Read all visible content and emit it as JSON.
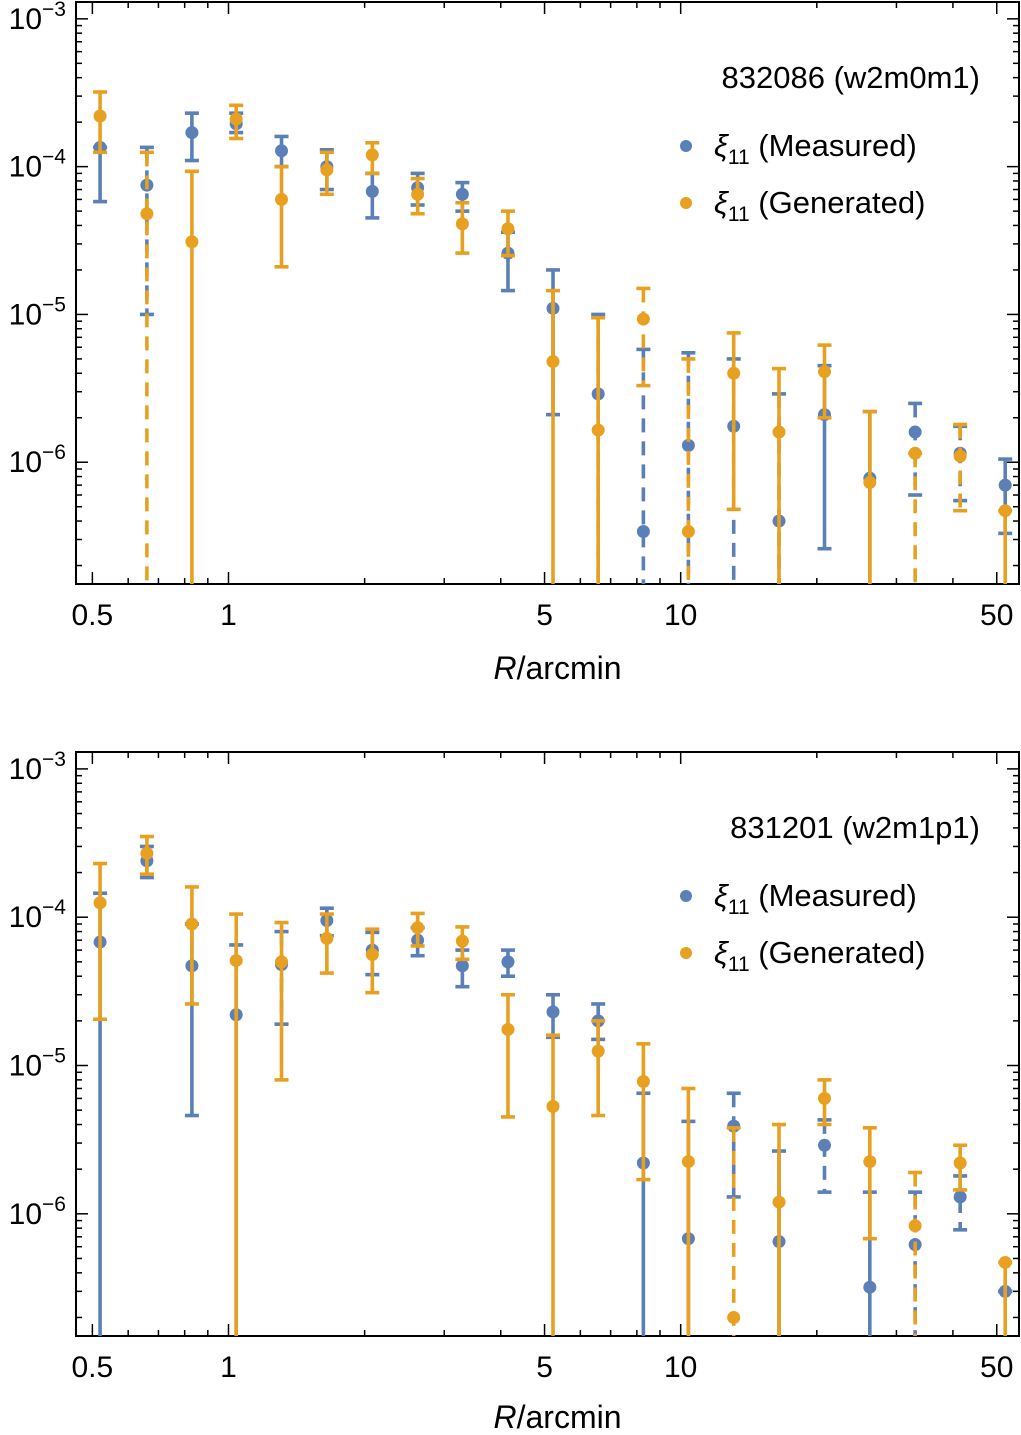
{
  "colors": {
    "measured": "#5b80b8",
    "generated": "#e7a020",
    "frame": "#000000",
    "background": "#ffffff"
  },
  "chart_data": [
    {
      "type": "scatter",
      "title": "832086 (w2m0m1)",
      "xlabel_italic": "R",
      "xlabel_rest": "/arcmin",
      "ylabel": "",
      "xscale": "log",
      "yscale": "log",
      "xlim": [
        0.46,
        56
      ],
      "ylim": [
        1.5e-07,
        0.0013
      ],
      "xticks": [
        {
          "value": 0.5,
          "label": "0.5"
        },
        {
          "value": 1,
          "label": "1"
        },
        {
          "value": 5,
          "label": "5"
        },
        {
          "value": 10,
          "label": "10"
        },
        {
          "value": 50,
          "label": "50"
        }
      ],
      "yticks": [
        {
          "value": 1e-06,
          "label_base": "10",
          "label_exp": "−6"
        },
        {
          "value": 1e-05,
          "label_base": "10",
          "label_exp": "−5"
        },
        {
          "value": 0.0001,
          "label_base": "10",
          "label_exp": "−4"
        },
        {
          "value": 0.001,
          "label_base": "10",
          "label_exp": "−3"
        }
      ],
      "legend_position": "top-right",
      "series": [
        {
          "key": "measured",
          "name_symbol": "ξ",
          "name_sub": "11",
          "name_rest": " (Measured)",
          "points": [
            {
              "x": 0.52,
              "y": 0.000135,
              "lo": 5.8e-05,
              "hi": 0.000135,
              "dashed": false
            },
            {
              "x": 0.66,
              "y": 7.5e-05,
              "lo": 1e-05,
              "hi": 0.000135,
              "dashed": true
            },
            {
              "x": 0.83,
              "y": 0.00017,
              "lo": 0.00011,
              "hi": 0.00023,
              "dashed": false
            },
            {
              "x": 1.04,
              "y": 0.000195,
              "lo": 0.00017,
              "hi": 0.00023,
              "dashed": false
            },
            {
              "x": 1.31,
              "y": 0.000128,
              "lo": 0.0001,
              "hi": 0.00016,
              "dashed": false
            },
            {
              "x": 1.65,
              "y": 0.0001,
              "lo": 7e-05,
              "hi": 0.00013,
              "dashed": true
            },
            {
              "x": 2.08,
              "y": 6.8e-05,
              "lo": 4.5e-05,
              "hi": 9e-05,
              "dashed": false
            },
            {
              "x": 2.62,
              "y": 7.2e-05,
              "lo": 5.5e-05,
              "hi": 9e-05,
              "dashed": true
            },
            {
              "x": 3.29,
              "y": 6.5e-05,
              "lo": 5e-05,
              "hi": 7.8e-05,
              "dashed": false
            },
            {
              "x": 4.15,
              "y": 2.6e-05,
              "lo": 1.45e-05,
              "hi": 3.6e-05,
              "dashed": false
            },
            {
              "x": 5.22,
              "y": 1.1e-05,
              "lo": 2.1e-06,
              "hi": 2e-05,
              "dashed": false
            },
            {
              "x": 6.57,
              "y": 2.9e-06,
              "lo": 1e-07,
              "hi": 1e-05,
              "dashed": true
            },
            {
              "x": 8.27,
              "y": 3.4e-07,
              "lo": 1e-07,
              "hi": 5.8e-06,
              "dashed": true
            },
            {
              "x": 10.4,
              "y": 1.3e-06,
              "lo": 1e-07,
              "hi": 5.5e-06,
              "dashed": true
            },
            {
              "x": 13.1,
              "y": 1.75e-06,
              "lo": 1e-07,
              "hi": 5e-06,
              "dashed": true
            },
            {
              "x": 16.5,
              "y": 4e-07,
              "lo": 1e-07,
              "hi": 2.9e-06,
              "dashed": true
            },
            {
              "x": 20.8,
              "y": 2.1e-06,
              "lo": 2.6e-07,
              "hi": 4.5e-06,
              "dashed": false
            },
            {
              "x": 26.2,
              "y": 7.8e-07,
              "lo": 1e-07,
              "hi": 2.2e-06,
              "dashed": false
            },
            {
              "x": 33.0,
              "y": 1.6e-06,
              "lo": 6e-07,
              "hi": 2.5e-06,
              "dashed": true
            },
            {
              "x": 41.5,
              "y": 1.15e-06,
              "lo": 5.5e-07,
              "hi": 1.75e-06,
              "dashed": true
            },
            {
              "x": 52.2,
              "y": 7e-07,
              "lo": 3.3e-07,
              "hi": 1.05e-06,
              "dashed": false
            }
          ]
        },
        {
          "key": "generated",
          "name_symbol": "ξ",
          "name_sub": "11",
          "name_rest": " (Generated)",
          "points": [
            {
              "x": 0.52,
              "y": 0.00022,
              "lo": 0.000125,
              "hi": 0.00032,
              "dashed": false
            },
            {
              "x": 0.66,
              "y": 4.8e-05,
              "lo": 1e-07,
              "hi": 0.000125,
              "dashed": true
            },
            {
              "x": 0.83,
              "y": 3.1e-05,
              "lo": 1e-07,
              "hi": 9.3e-05,
              "dashed": false
            },
            {
              "x": 1.04,
              "y": 0.00021,
              "lo": 0.000155,
              "hi": 0.00026,
              "dashed": false
            },
            {
              "x": 1.31,
              "y": 6e-05,
              "lo": 2.1e-05,
              "hi": 0.0001,
              "dashed": false
            },
            {
              "x": 1.65,
              "y": 9.5e-05,
              "lo": 6.5e-05,
              "hi": 0.000125,
              "dashed": false
            },
            {
              "x": 2.08,
              "y": 0.00012,
              "lo": 9e-05,
              "hi": 0.000145,
              "dashed": false
            },
            {
              "x": 2.62,
              "y": 6.5e-05,
              "lo": 4.8e-05,
              "hi": 8.3e-05,
              "dashed": false
            },
            {
              "x": 3.29,
              "y": 4.1e-05,
              "lo": 2.6e-05,
              "hi": 5.7e-05,
              "dashed": false
            },
            {
              "x": 4.15,
              "y": 3.8e-05,
              "lo": 2.5e-05,
              "hi": 5e-05,
              "dashed": false
            },
            {
              "x": 5.22,
              "y": 4.8e-06,
              "lo": 1e-07,
              "hi": 1.45e-05,
              "dashed": false
            },
            {
              "x": 6.57,
              "y": 1.65e-06,
              "lo": 1e-07,
              "hi": 9.5e-06,
              "dashed": false
            },
            {
              "x": 8.27,
              "y": 9.3e-06,
              "lo": 3.3e-06,
              "hi": 1.5e-05,
              "dashed": true
            },
            {
              "x": 10.4,
              "y": 3.4e-07,
              "lo": 1e-07,
              "hi": 5e-06,
              "dashed": true
            },
            {
              "x": 13.1,
              "y": 4e-06,
              "lo": 4.8e-07,
              "hi": 7.5e-06,
              "dashed": false
            },
            {
              "x": 16.5,
              "y": 1.6e-06,
              "lo": 1e-07,
              "hi": 4.3e-06,
              "dashed": false
            },
            {
              "x": 20.8,
              "y": 4.1e-06,
              "lo": 2e-06,
              "hi": 6.2e-06,
              "dashed": false
            },
            {
              "x": 26.2,
              "y": 7.3e-07,
              "lo": 1e-07,
              "hi": 2.2e-06,
              "dashed": false
            },
            {
              "x": 33.0,
              "y": 1.15e-06,
              "lo": 1e-07,
              "hi": 1.15e-06,
              "dashed": true
            },
            {
              "x": 41.5,
              "y": 1.1e-06,
              "lo": 4.7e-07,
              "hi": 1.8e-06,
              "dashed": true
            },
            {
              "x": 52.2,
              "y": 4.7e-07,
              "lo": 1e-07,
              "hi": 4.7e-07,
              "dashed": false
            }
          ]
        }
      ]
    },
    {
      "type": "scatter",
      "title": "831201 (w2m1p1)",
      "xlabel_italic": "R",
      "xlabel_rest": "/arcmin",
      "ylabel": "",
      "xscale": "log",
      "yscale": "log",
      "xlim": [
        0.46,
        56
      ],
      "ylim": [
        1.5e-07,
        0.0013
      ],
      "xticks": [
        {
          "value": 0.5,
          "label": "0.5"
        },
        {
          "value": 1,
          "label": "1"
        },
        {
          "value": 5,
          "label": "5"
        },
        {
          "value": 10,
          "label": "10"
        },
        {
          "value": 50,
          "label": "50"
        }
      ],
      "yticks": [
        {
          "value": 1e-06,
          "label_base": "10",
          "label_exp": "−6"
        },
        {
          "value": 1e-05,
          "label_base": "10",
          "label_exp": "−5"
        },
        {
          "value": 0.0001,
          "label_base": "10",
          "label_exp": "−4"
        },
        {
          "value": 0.001,
          "label_base": "10",
          "label_exp": "−3"
        }
      ],
      "legend_position": "top-right",
      "series": [
        {
          "key": "measured",
          "name_symbol": "ξ",
          "name_sub": "11",
          "name_rest": " (Measured)",
          "points": [
            {
              "x": 0.52,
              "y": 6.8e-05,
              "lo": 1e-07,
              "hi": 0.000145,
              "dashed": false
            },
            {
              "x": 0.66,
              "y": 0.00024,
              "lo": 0.000185,
              "hi": 0.0003,
              "dashed": false
            },
            {
              "x": 0.83,
              "y": 4.7e-05,
              "lo": 4.6e-06,
              "hi": 9e-05,
              "dashed": false
            },
            {
              "x": 1.04,
              "y": 2.2e-05,
              "lo": 1e-07,
              "hi": 6.5e-05,
              "dashed": false
            },
            {
              "x": 1.31,
              "y": 4.8e-05,
              "lo": 1.9e-05,
              "hi": 8e-05,
              "dashed": true
            },
            {
              "x": 1.65,
              "y": 9.5e-05,
              "lo": 7.5e-05,
              "hi": 0.000115,
              "dashed": false
            },
            {
              "x": 2.08,
              "y": 6e-05,
              "lo": 4.1e-05,
              "hi": 7.9e-05,
              "dashed": false
            },
            {
              "x": 2.62,
              "y": 7e-05,
              "lo": 5.5e-05,
              "hi": 8.5e-05,
              "dashed": false
            },
            {
              "x": 3.29,
              "y": 4.7e-05,
              "lo": 3.4e-05,
              "hi": 6e-05,
              "dashed": false
            },
            {
              "x": 4.15,
              "y": 5e-05,
              "lo": 4e-05,
              "hi": 6e-05,
              "dashed": false
            },
            {
              "x": 5.22,
              "y": 2.3e-05,
              "lo": 1.55e-05,
              "hi": 3e-05,
              "dashed": false
            },
            {
              "x": 6.57,
              "y": 2e-05,
              "lo": 1.5e-05,
              "hi": 2.6e-05,
              "dashed": true
            },
            {
              "x": 8.27,
              "y": 2.2e-06,
              "lo": 1e-07,
              "hi": 6.5e-06,
              "dashed": false
            },
            {
              "x": 10.4,
              "y": 6.8e-07,
              "lo": 1e-07,
              "hi": 4.2e-06,
              "dashed": false
            },
            {
              "x": 13.1,
              "y": 3.9e-06,
              "lo": 1.3e-06,
              "hi": 6.5e-06,
              "dashed": true
            },
            {
              "x": 16.5,
              "y": 6.5e-07,
              "lo": 1e-07,
              "hi": 2.65e-06,
              "dashed": false
            },
            {
              "x": 20.8,
              "y": 2.9e-06,
              "lo": 1.4e-06,
              "hi": 4.3e-06,
              "dashed": true
            },
            {
              "x": 26.2,
              "y": 3.2e-07,
              "lo": 1e-07,
              "hi": 1.4e-06,
              "dashed": false
            },
            {
              "x": 33.0,
              "y": 6.2e-07,
              "lo": 1e-07,
              "hi": 1.4e-06,
              "dashed": true
            },
            {
              "x": 41.5,
              "y": 1.3e-06,
              "lo": 7.8e-07,
              "hi": 1.8e-06,
              "dashed": true
            },
            {
              "x": 52.2,
              "y": 3e-07,
              "lo": 3e-07,
              "hi": 3e-07,
              "dashed": false
            }
          ]
        },
        {
          "key": "generated",
          "name_symbol": "ξ",
          "name_sub": "11",
          "name_rest": " (Generated)",
          "points": [
            {
              "x": 0.52,
              "y": 0.000125,
              "lo": 2.05e-05,
              "hi": 0.00023,
              "dashed": false
            },
            {
              "x": 0.66,
              "y": 0.00027,
              "lo": 0.000195,
              "hi": 0.00035,
              "dashed": true
            },
            {
              "x": 0.83,
              "y": 9e-05,
              "lo": 2.6e-05,
              "hi": 0.00016,
              "dashed": false
            },
            {
              "x": 1.04,
              "y": 5.1e-05,
              "lo": 1e-07,
              "hi": 0.000105,
              "dashed": false
            },
            {
              "x": 1.31,
              "y": 5e-05,
              "lo": 8e-06,
              "hi": 9.2e-05,
              "dashed": false
            },
            {
              "x": 1.65,
              "y": 7.2e-05,
              "lo": 4.2e-05,
              "hi": 0.000105,
              "dashed": false
            },
            {
              "x": 2.08,
              "y": 5.6e-05,
              "lo": 3.1e-05,
              "hi": 8.3e-05,
              "dashed": false
            },
            {
              "x": 2.62,
              "y": 8.5e-05,
              "lo": 6.4e-05,
              "hi": 0.000106,
              "dashed": false
            },
            {
              "x": 3.29,
              "y": 6.9e-05,
              "lo": 5.2e-05,
              "hi": 8.6e-05,
              "dashed": false
            },
            {
              "x": 4.15,
              "y": 1.75e-05,
              "lo": 4.5e-06,
              "hi": 3e-05,
              "dashed": false
            },
            {
              "x": 5.22,
              "y": 5.3e-06,
              "lo": 1e-07,
              "hi": 1.6e-05,
              "dashed": false
            },
            {
              "x": 6.57,
              "y": 1.25e-05,
              "lo": 4.6e-06,
              "hi": 2e-05,
              "dashed": false
            },
            {
              "x": 8.27,
              "y": 7.8e-06,
              "lo": 1.7e-06,
              "hi": 1.4e-05,
              "dashed": false
            },
            {
              "x": 10.4,
              "y": 2.25e-06,
              "lo": 1e-07,
              "hi": 7e-06,
              "dashed": false
            },
            {
              "x": 13.1,
              "y": 2e-07,
              "lo": 1e-07,
              "hi": 3.8e-06,
              "dashed": true
            },
            {
              "x": 16.5,
              "y": 1.2e-06,
              "lo": 1e-07,
              "hi": 4e-06,
              "dashed": false
            },
            {
              "x": 20.8,
              "y": 6e-06,
              "lo": 4e-06,
              "hi": 8e-06,
              "dashed": false
            },
            {
              "x": 26.2,
              "y": 2.25e-06,
              "lo": 6.8e-07,
              "hi": 3.8e-06,
              "dashed": false
            },
            {
              "x": 33.0,
              "y": 8.3e-07,
              "lo": 1e-07,
              "hi": 1.9e-06,
              "dashed": true
            },
            {
              "x": 41.5,
              "y": 2.2e-06,
              "lo": 1.45e-06,
              "hi": 2.9e-06,
              "dashed": false
            },
            {
              "x": 52.2,
              "y": 4.7e-07,
              "lo": 1e-07,
              "hi": 4.7e-07,
              "dashed": false
            }
          ]
        }
      ]
    }
  ]
}
